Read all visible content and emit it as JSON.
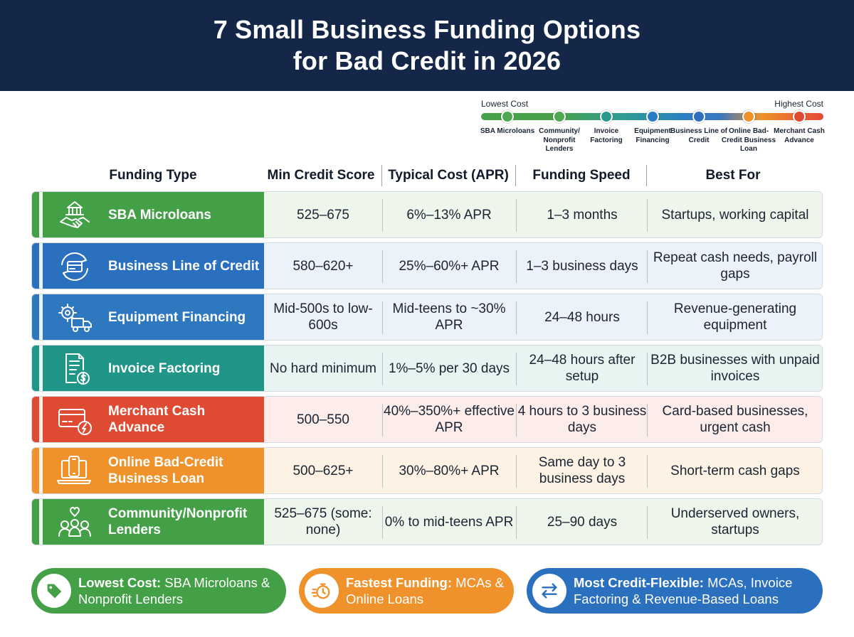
{
  "title": {
    "line1": "7 Small Business Funding Options",
    "line2": "for Bad Credit in 2026"
  },
  "scale": {
    "low_label": "Lowest Cost",
    "high_label": "Highest Cost",
    "points": [
      {
        "label": "SBA Microloans",
        "color": "#4ea84f"
      },
      {
        "label": "Community/ Nonprofit Lenders",
        "color": "#4ea84f"
      },
      {
        "label": "Invoice Factoring",
        "color": "#2a9a90"
      },
      {
        "label": "Equipment Financing",
        "color": "#2b7cc4"
      },
      {
        "label": "Business Line of Credit",
        "color": "#2b6fbe"
      },
      {
        "label": "Online Bad-Credit Business Loan",
        "color": "#f0912a"
      },
      {
        "label": "Merchant Cash Advance",
        "color": "#e04a33"
      }
    ]
  },
  "columns": {
    "type": "Funding Type",
    "score": "Min Credit Score",
    "cost": "Typical Cost (APR)",
    "speed": "Funding Speed",
    "best": "Best For"
  },
  "rows": [
    {
      "name": "SBA Microloans",
      "icon": "handshake-capitol-icon",
      "accent": "#43a047",
      "tint": "#eef6ec",
      "score": "525–675",
      "cost": "6%–13% APR",
      "speed": "1–3 months",
      "best": "Startups, working capital"
    },
    {
      "name": "Business Line of Credit",
      "icon": "credit-cycle-icon",
      "accent": "#2a70bf",
      "tint": "#ecf2fa",
      "score": "580–620+",
      "cost": "25%–60%+ APR",
      "speed": "1–3 business days",
      "best": "Repeat cash needs, payroll gaps"
    },
    {
      "name": "Equipment Financing",
      "icon": "gear-truck-icon",
      "accent": "#2d78bf",
      "tint": "#ecf2fa",
      "score": "Mid-500s to low-600s",
      "cost": "Mid-teens to ~30% APR",
      "speed": "24–48 hours",
      "best": "Revenue-generating equipment"
    },
    {
      "name": "Invoice Factoring",
      "icon": "invoice-dollar-icon",
      "accent": "#1f9688",
      "tint": "#e8f4f1",
      "score": "No hard minimum",
      "cost": "1%–5% per 30 days",
      "speed": "24–48 hours after setup",
      "best": "B2B businesses with unpaid invoices"
    },
    {
      "name": "Merchant Cash Advance",
      "icon": "card-bolt-icon",
      "accent": "#df4a33",
      "tint": "#fcecea",
      "score": "500–550",
      "cost": "40%–350%+ effective APR",
      "speed": "4 hours to 3 business days",
      "best": "Card-based businesses, urgent cash"
    },
    {
      "name": "Online Bad-Credit Business Loan",
      "icon": "laptop-phone-icon",
      "accent": "#f0922b",
      "tint": "#fdf2e4",
      "score": "500–625+",
      "cost": "30%–80%+ APR",
      "speed": "Same day to 3 business days",
      "best": "Short-term cash gaps"
    },
    {
      "name": "Community/Nonprofit Lenders",
      "icon": "community-heart-icon",
      "accent": "#43a047",
      "tint": "#eef6ec",
      "score": "525–675 (some: none)",
      "cost": "0% to mid-teens APR",
      "speed": "25–90 days",
      "best": "Underserved owners, startups"
    }
  ],
  "pills": [
    {
      "bold": "Lowest Cost:",
      "text": "SBA Microloans & Nonprofit Lenders",
      "color": "#43a047",
      "icon": "tag-icon"
    },
    {
      "bold": "Fastest Funding:",
      "text": "MCAs & Online Loans",
      "color": "#f0922b",
      "icon": "stopwatch-icon"
    },
    {
      "bold": "Most Credit-Flexible:",
      "text": "MCAs, Invoice Factoring & Revenue-Based Loans",
      "color": "#2a70bf",
      "icon": "swap-arrows-icon"
    }
  ]
}
